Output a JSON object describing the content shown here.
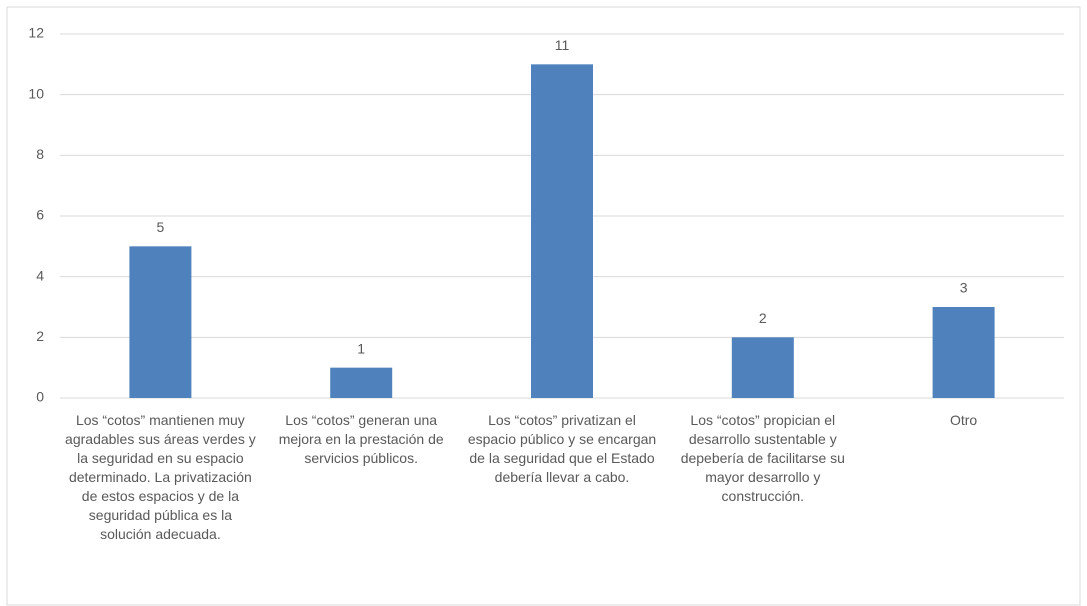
{
  "chart_data": {
    "type": "bar",
    "categories": [
      "Los “cotos” mantienen muy agradables sus áreas verdes y la seguridad en su espacio determinado. La privatización de estos espacios y de la seguridad pública es la solución adecuada.",
      "Los “cotos” generan una mejora en la prestación de servicios públicos.",
      "Los “cotos” privatizan el espacio público y se encargan de la seguridad que el Estado debería llevar a cabo.",
      "Los “cotos” propician el desarrollo sustentable y depebería de facilitarse su mayor desarrollo y construcción.",
      "Otro"
    ],
    "values": [
      5,
      1,
      11,
      2,
      3
    ],
    "color": "#4f81bd",
    "ylim": [
      0,
      12
    ],
    "yticks": [
      0,
      2,
      4,
      6,
      8,
      10,
      12
    ],
    "grid": true
  }
}
